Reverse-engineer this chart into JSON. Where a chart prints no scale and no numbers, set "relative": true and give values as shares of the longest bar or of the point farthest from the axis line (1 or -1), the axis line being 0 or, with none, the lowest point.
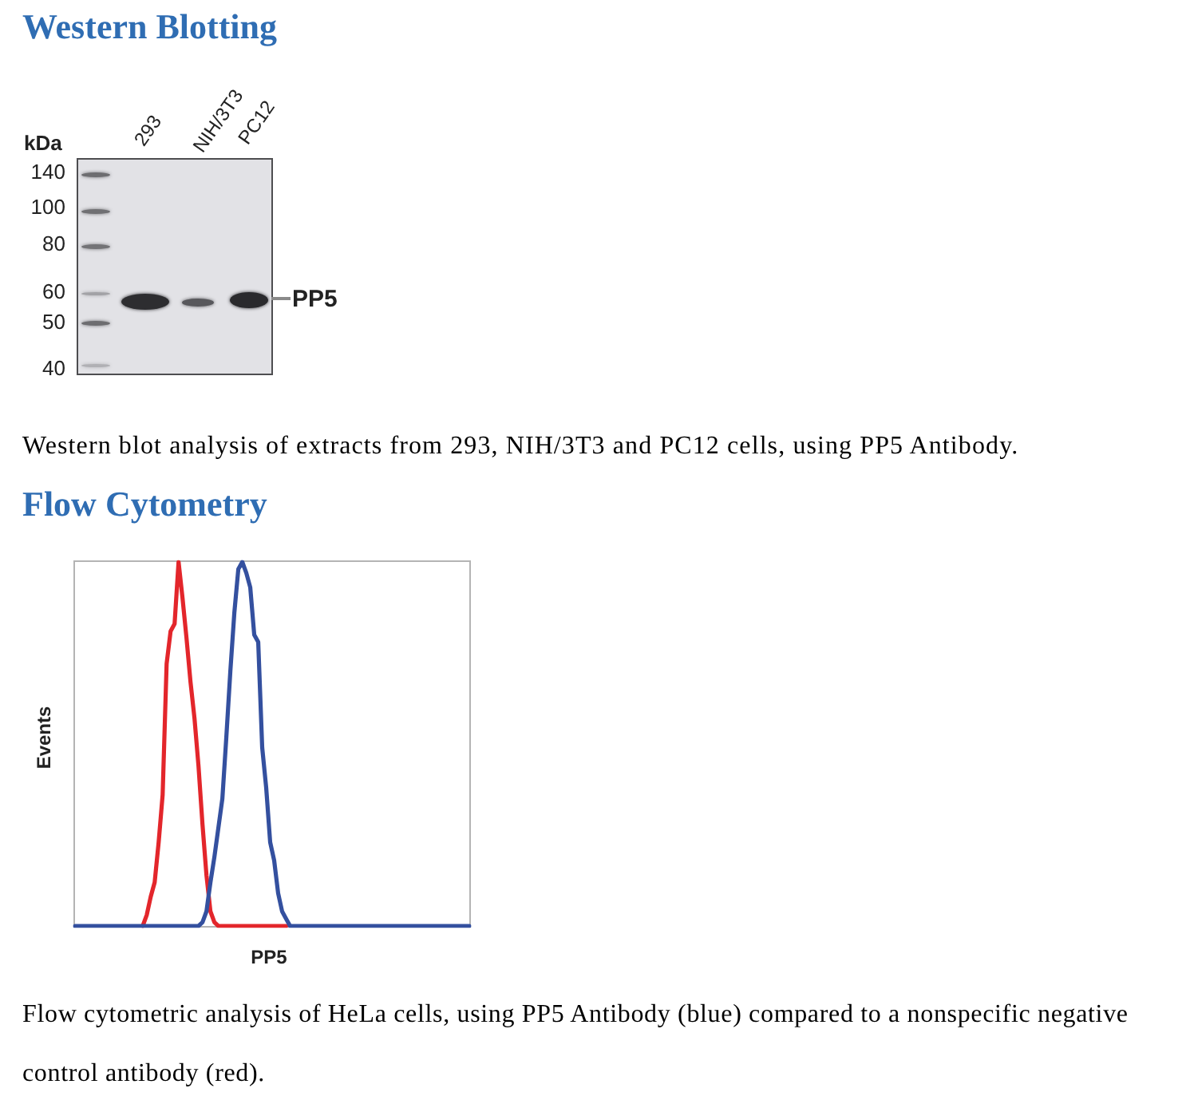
{
  "chart_data": [
    {
      "type": "other",
      "title": "Western Blotting",
      "ylabel": "kDa",
      "categories": [
        "293",
        "NIH/3T3",
        "PC12"
      ],
      "annotations": [
        "140",
        "100",
        "80",
        "60",
        "50",
        "40",
        "PP5",
        "Western blot analysis of extracts from 293, NIH/3T3 and PC12 cells, using PP5 Antibody."
      ]
    },
    {
      "type": "line",
      "title": "Flow Cytometry",
      "xlabel": "PP5",
      "ylabel": "Events",
      "relative": true,
      "categories": [
        null,
        null,
        null,
        null,
        null,
        null,
        null,
        null,
        null,
        null,
        null,
        null,
        null,
        null,
        null,
        null,
        null,
        null,
        null,
        null,
        null,
        null,
        null,
        null,
        null,
        null,
        null,
        null,
        null,
        null,
        null,
        null,
        null,
        null,
        null,
        null,
        null,
        null,
        null,
        null,
        null,
        null,
        null,
        null,
        null,
        null,
        null,
        null,
        null,
        null,
        null,
        null,
        null,
        null,
        null,
        null,
        null,
        null,
        null,
        null,
        null,
        null,
        null,
        null,
        null,
        null,
        null,
        null,
        null,
        null,
        null,
        null,
        null,
        null,
        null,
        null,
        null,
        null,
        null,
        null,
        null,
        null,
        null,
        null,
        null,
        null,
        null,
        null,
        null,
        null,
        null,
        null,
        null,
        null,
        null,
        null,
        null,
        null,
        null,
        null
      ],
      "series": [
        {
          "color": "#e3262b",
          "values": [
            null,
            null,
            null,
            null,
            null,
            null,
            null,
            null,
            null,
            null,
            null,
            null,
            null,
            null,
            null,
            null,
            null,
            0,
            0.03,
            0.08,
            0.12,
            0.23,
            0.36,
            0.72,
            0.81,
            0.83,
            1,
            0.9,
            0.79,
            0.67,
            0.57,
            0.44,
            0.28,
            0.14,
            0.04,
            0.01,
            0,
            0,
            0,
            0,
            0,
            0,
            0,
            0,
            0,
            0,
            0,
            0,
            0,
            0,
            0,
            0,
            0,
            0,
            null,
            null,
            null,
            null,
            null,
            null,
            null,
            null,
            null,
            null,
            null,
            null,
            null,
            null,
            null,
            null,
            null,
            null,
            null,
            null,
            null,
            null,
            null,
            null,
            null,
            null,
            null,
            null,
            null,
            null,
            null,
            null,
            null,
            null,
            null,
            null,
            null,
            null,
            null,
            null,
            null,
            null,
            null,
            null,
            null,
            null
          ]
        },
        {
          "color": "#34509f",
          "values": [
            0,
            0,
            0,
            0,
            0,
            0,
            0,
            0,
            0,
            0,
            0,
            0,
            0,
            0,
            0,
            0,
            0,
            0,
            0,
            0,
            0,
            0,
            0,
            0,
            0,
            0,
            0,
            0,
            0,
            0,
            0,
            0,
            0.01,
            0.04,
            0.12,
            0.19,
            0.27,
            0.35,
            0.52,
            0.7,
            0.86,
            0.98,
            1,
            0.97,
            0.93,
            0.8,
            0.78,
            0.49,
            0.38,
            0.23,
            0.18,
            0.09,
            0.04,
            0.02,
            0,
            0,
            0,
            0,
            0,
            0,
            0,
            0,
            0,
            0,
            0,
            0,
            0,
            0,
            0,
            0,
            0,
            0,
            0,
            0,
            0,
            0,
            0,
            0,
            0,
            0,
            0,
            0,
            0,
            0,
            0,
            0,
            0,
            0,
            0,
            0,
            0,
            0,
            0,
            0,
            0,
            0,
            0,
            0,
            0,
            0
          ]
        }
      ],
      "annotations": [
        "Flow cytometric analysis of HeLa cells, using PP5 Antibody (blue) compared to a nonspecific negative control antibody (red)."
      ]
    }
  ]
}
